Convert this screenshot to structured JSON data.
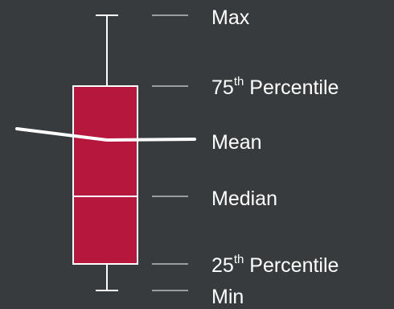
{
  "colors": {
    "background": "#383b3d",
    "box_fill": "#b5173d",
    "line": "#ffffff"
  },
  "labels": {
    "max": "Max",
    "p75_number": "75",
    "p75_suffix": "th",
    "p75_text": " Percentile",
    "mean": "Mean",
    "median": "Median",
    "p25_number": "25",
    "p25_suffix": "th",
    "p25_text": " Percentile",
    "min": "Min"
  }
}
